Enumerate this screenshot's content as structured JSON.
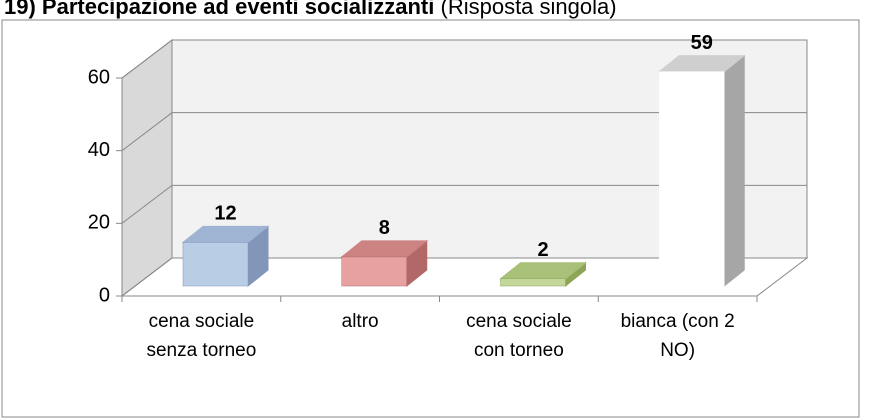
{
  "chart_data": {
    "type": "bar3d",
    "title": "19) Partecipazione ad eventi socializzanti",
    "subtitle": "(Risposta singola)",
    "categories": [
      "cena sociale senza torneo",
      "altro",
      "cena sociale con torneo",
      "bianca (con 2 NO)"
    ],
    "values": [
      12,
      8,
      2,
      59
    ],
    "colors": [
      [
        "#b9cde5",
        "#8196b8",
        "#9fb4d2"
      ],
      [
        "#e6a1a0",
        "#b26866",
        "#cc8382"
      ],
      [
        "#c4d79b",
        "#8ea558",
        "#a9c078"
      ],
      [
        "#ffffff",
        "#a6a6a6",
        "#cfcfcf"
      ]
    ],
    "ylim": [
      0,
      60
    ],
    "yticks": [
      0,
      20,
      40,
      60
    ],
    "grid": true
  }
}
